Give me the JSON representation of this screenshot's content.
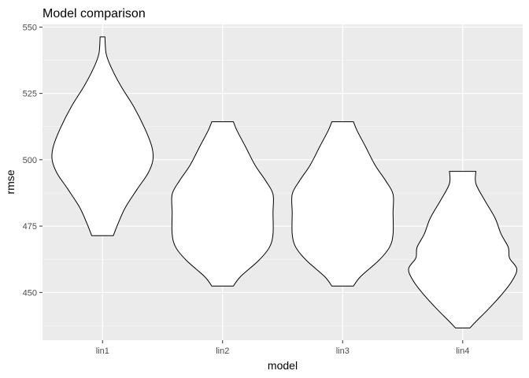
{
  "chart_data": {
    "type": "violin",
    "title": "Model comparison",
    "xlabel": "model",
    "ylabel": "rmse",
    "categories": [
      "lin1",
      "lin2",
      "lin3",
      "lin4"
    ],
    "ylim": [
      432,
      551
    ],
    "y_ticks": [
      450,
      475,
      500,
      525,
      550
    ],
    "grid": true,
    "legend": "none",
    "colors": {
      "panel_background": "#ebebeb",
      "grid_major": "#ffffff",
      "grid_minor": "#f5f5f5",
      "violin_fill": "#ffffff",
      "violin_outline": "#000000"
    },
    "violins": [
      {
        "category": "lin1",
        "min": 471.4,
        "max": 546.3,
        "density_profile": [
          {
            "y": 471.4,
            "half_width": 0.09
          },
          {
            "y": 476,
            "half_width": 0.13
          },
          {
            "y": 482,
            "half_width": 0.19
          },
          {
            "y": 489,
            "half_width": 0.29
          },
          {
            "y": 495,
            "half_width": 0.38
          },
          {
            "y": 500,
            "half_width": 0.42
          },
          {
            "y": 505,
            "half_width": 0.41
          },
          {
            "y": 512,
            "half_width": 0.35
          },
          {
            "y": 520,
            "half_width": 0.26
          },
          {
            "y": 528,
            "half_width": 0.15
          },
          {
            "y": 535,
            "half_width": 0.07
          },
          {
            "y": 540,
            "half_width": 0.03
          },
          {
            "y": 546.3,
            "half_width": 0.02
          }
        ]
      },
      {
        "category": "lin2",
        "min": 452.4,
        "max": 514.3,
        "density_profile": [
          {
            "y": 452.4,
            "half_width": 0.09
          },
          {
            "y": 456,
            "half_width": 0.15
          },
          {
            "y": 462,
            "half_width": 0.3
          },
          {
            "y": 467,
            "half_width": 0.39
          },
          {
            "y": 472,
            "half_width": 0.42
          },
          {
            "y": 480,
            "half_width": 0.42
          },
          {
            "y": 487,
            "half_width": 0.42
          },
          {
            "y": 492,
            "half_width": 0.36
          },
          {
            "y": 498,
            "half_width": 0.27
          },
          {
            "y": 505,
            "half_width": 0.19
          },
          {
            "y": 511,
            "half_width": 0.12
          },
          {
            "y": 514.3,
            "half_width": 0.09
          }
        ]
      },
      {
        "category": "lin3",
        "min": 452.4,
        "max": 514.3,
        "density_profile": [
          {
            "y": 452.4,
            "half_width": 0.09
          },
          {
            "y": 456,
            "half_width": 0.15
          },
          {
            "y": 462,
            "half_width": 0.3
          },
          {
            "y": 467,
            "half_width": 0.39
          },
          {
            "y": 472,
            "half_width": 0.42
          },
          {
            "y": 480,
            "half_width": 0.42
          },
          {
            "y": 487,
            "half_width": 0.42
          },
          {
            "y": 492,
            "half_width": 0.36
          },
          {
            "y": 498,
            "half_width": 0.27
          },
          {
            "y": 505,
            "half_width": 0.19
          },
          {
            "y": 511,
            "half_width": 0.12
          },
          {
            "y": 514.3,
            "half_width": 0.09
          }
        ]
      },
      {
        "category": "lin4",
        "min": 436.6,
        "max": 495.6,
        "density_profile": [
          {
            "y": 436.6,
            "half_width": 0.06
          },
          {
            "y": 439,
            "half_width": 0.11
          },
          {
            "y": 444,
            "half_width": 0.22
          },
          {
            "y": 450,
            "half_width": 0.34
          },
          {
            "y": 455,
            "half_width": 0.42
          },
          {
            "y": 459,
            "half_width": 0.45
          },
          {
            "y": 463,
            "half_width": 0.39
          },
          {
            "y": 467,
            "half_width": 0.38
          },
          {
            "y": 472,
            "half_width": 0.32
          },
          {
            "y": 478,
            "half_width": 0.27
          },
          {
            "y": 485,
            "half_width": 0.18
          },
          {
            "y": 491,
            "half_width": 0.11
          },
          {
            "y": 495.6,
            "half_width": 0.11
          }
        ]
      }
    ]
  }
}
